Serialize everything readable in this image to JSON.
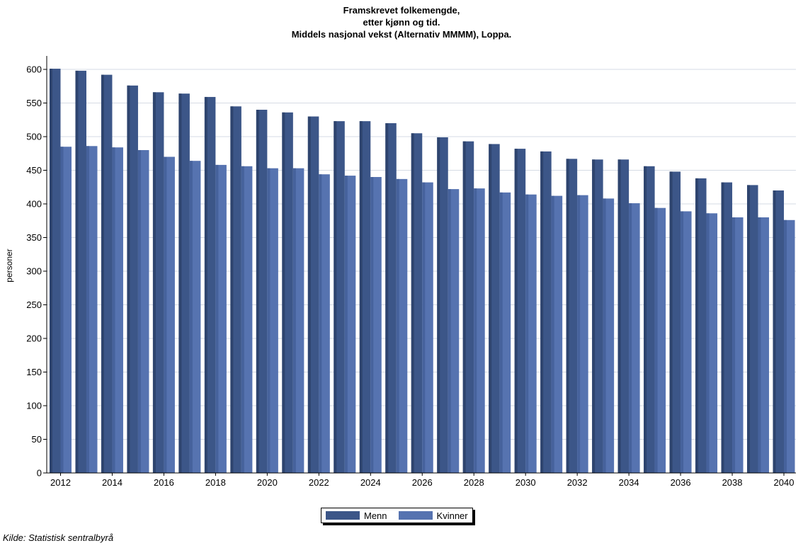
{
  "chart_data": {
    "type": "bar",
    "title_lines": [
      "Framskrevet folkemengde,",
      "etter kjønn og tid.",
      "Middels nasjonal vekst (Alternativ MMMM), Loppa."
    ],
    "xlabel": "",
    "ylabel": "personer",
    "ylim": [
      0,
      620
    ],
    "yticks": [
      0,
      50,
      100,
      150,
      200,
      250,
      300,
      350,
      400,
      450,
      500,
      550,
      600
    ],
    "categories": [
      "2012",
      "2013",
      "2014",
      "2015",
      "2016",
      "2017",
      "2018",
      "2019",
      "2020",
      "2021",
      "2022",
      "2023",
      "2024",
      "2025",
      "2026",
      "2027",
      "2028",
      "2029",
      "2030",
      "2031",
      "2032",
      "2033",
      "2034",
      "2035",
      "2036",
      "2037",
      "2038",
      "2039",
      "2040"
    ],
    "xtick_labels": [
      "2012",
      "2014",
      "2016",
      "2018",
      "2020",
      "2022",
      "2024",
      "2026",
      "2028",
      "2030",
      "2032",
      "2034",
      "2036",
      "2038",
      "2040"
    ],
    "series": [
      {
        "name": "Menn",
        "color": "#3c5688",
        "values": [
          601,
          598,
          592,
          576,
          566,
          564,
          559,
          545,
          540,
          536,
          530,
          523,
          523,
          520,
          505,
          499,
          493,
          489,
          482,
          478,
          467,
          466,
          466,
          456,
          448,
          438,
          432,
          428,
          420
        ]
      },
      {
        "name": "Kvinner",
        "color": "#5673b0",
        "values": [
          485,
          486,
          484,
          480,
          470,
          464,
          458,
          456,
          453,
          453,
          444,
          442,
          440,
          437,
          432,
          422,
          423,
          417,
          414,
          412,
          413,
          408,
          401,
          394,
          389,
          386,
          380,
          380,
          376
        ]
      }
    ],
    "grid": true,
    "legend_position": "bottom-center"
  },
  "footer": {
    "source": "Kilde: Statistisk sentralbyrå"
  }
}
